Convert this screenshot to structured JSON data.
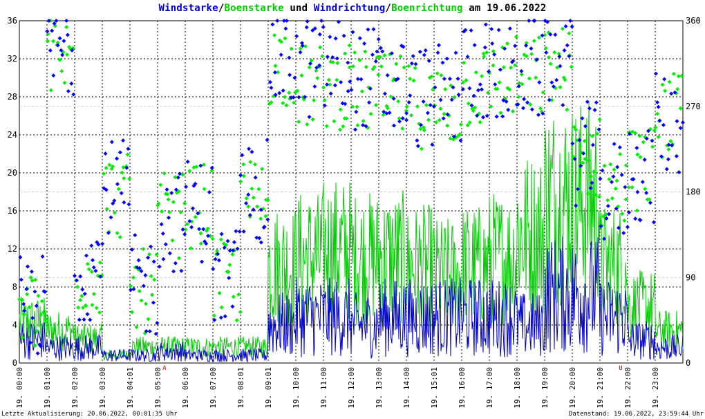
{
  "title": {
    "part1": "Windstarke",
    "sep1": "/",
    "part2": "Boenstarke",
    "part3": " und ",
    "part4": "Windrichtung",
    "sep2": "/",
    "part5": "Boenrichtung",
    "part6": " am 19.06.2022"
  },
  "footer": {
    "left": "Letzte Aktualisierung: 20.06.2022, 00:01:35 Uhr",
    "right": "Datenstand: 19.06.2022, 23:59:44 Uhr"
  },
  "colors": {
    "wind": "#0000cc",
    "gust": "#00cc00",
    "direction": "#0000ff",
    "gust_direction": "#00ee00",
    "grid": "#000000",
    "marker": "#cc0000"
  },
  "chart_data": {
    "type": "line",
    "title": "Windstarke/Boenstarke und Windrichtung/Boenrichtung am 19.06.2022",
    "left_axis": {
      "ylim": [
        0,
        36
      ],
      "ticks": [
        "0",
        "4",
        "8",
        "12",
        "16",
        "20",
        "24",
        "28",
        "32",
        "36"
      ]
    },
    "right_axis": {
      "ylim": [
        0,
        360
      ],
      "ticks": [
        "0",
        "90",
        "180",
        "270",
        "360"
      ]
    },
    "x_ticks": [
      "19. 00:00",
      "19. 01:00",
      "19. 02:00",
      "19. 03:00",
      "19. 04:01",
      "19. 05:00",
      "19. 06:00",
      "19. 07:00",
      "19. 08:01",
      "19. 09:01",
      "19. 10:00",
      "19. 11:00",
      "19. 12:00",
      "19. 13:00",
      "19. 14:00",
      "19. 15:01",
      "19. 16:00",
      "19. 17:00",
      "19. 18:00",
      "19. 19:00",
      "19. 20:00",
      "19. 21:00",
      "19. 22:00",
      "19. 23:00"
    ],
    "x_range_hours": [
      0,
      24
    ],
    "markers": [
      {
        "hour": 5.25,
        "label": "A"
      },
      {
        "hour": 21.75,
        "label": "U"
      }
    ],
    "grid": true,
    "series": [
      {
        "name": "Windstarke",
        "kind": "line",
        "axis": "left",
        "hourly_levels": [
          3,
          2,
          2,
          1,
          1,
          1.5,
          1,
          1,
          1,
          5,
          6,
          6,
          5,
          6,
          6,
          6,
          6,
          6,
          5,
          9,
          9,
          6,
          3,
          2
        ]
      },
      {
        "name": "Boenstarke",
        "kind": "line",
        "axis": "left",
        "hourly_levels": [
          5,
          4,
          3,
          1,
          2,
          2,
          2,
          2,
          2,
          12,
          13,
          14,
          13,
          13,
          12,
          11,
          12,
          13,
          16,
          20,
          20,
          12,
          7,
          4
        ]
      },
      {
        "name": "Windrichtung",
        "kind": "points",
        "axis": "right",
        "hourly_levels": [
          60,
          330,
          100,
          180,
          80,
          150,
          160,
          90,
          180,
          320,
          310,
          310,
          300,
          290,
          280,
          280,
          310,
          300,
          310,
          320,
          220,
          180,
          200,
          250
        ]
      },
      {
        "name": "Boenrichtung",
        "kind": "points",
        "axis": "right",
        "hourly_levels": [
          55,
          320,
          95,
          175,
          75,
          155,
          165,
          85,
          170,
          315,
          290,
          290,
          285,
          280,
          270,
          270,
          290,
          300,
          300,
          310,
          215,
          185,
          205,
          260
        ]
      }
    ]
  }
}
